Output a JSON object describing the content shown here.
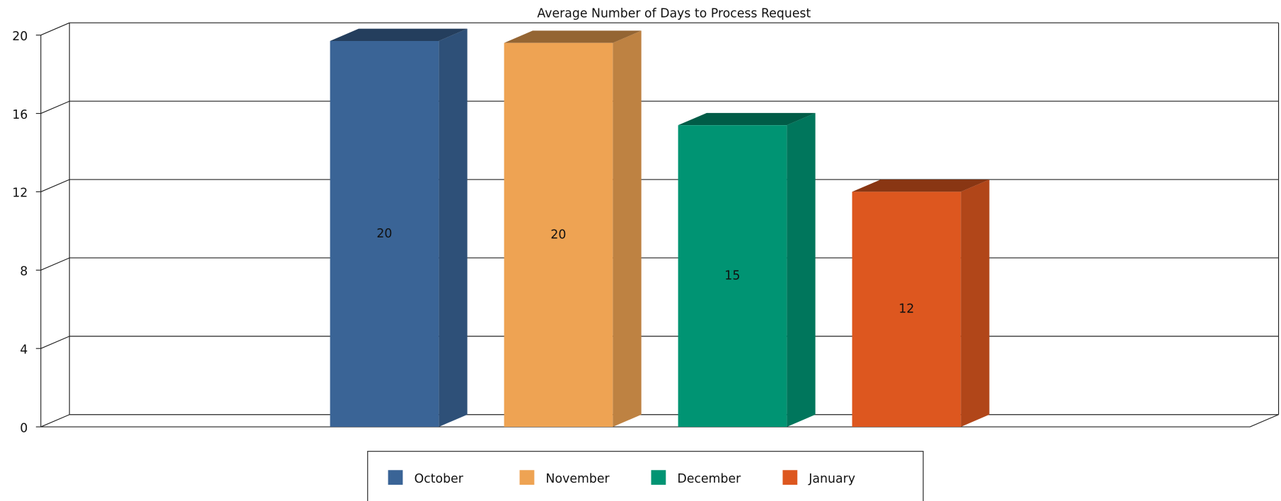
{
  "chart_data": {
    "type": "bar3d",
    "title": "Average Number of Days to Process Request",
    "series": [
      {
        "name": "October",
        "color": "#3a6496",
        "values": [
          19.7
        ],
        "value_labels": [
          "20"
        ]
      },
      {
        "name": "November",
        "color": "#eea353",
        "values": [
          19.6
        ],
        "value_labels": [
          "20"
        ]
      },
      {
        "name": "December",
        "color": "#009473",
        "values": [
          15.4
        ],
        "value_labels": [
          "15"
        ]
      },
      {
        "name": "January",
        "color": "#dd571f",
        "values": [
          12.0
        ],
        "value_labels": [
          "12"
        ]
      }
    ],
    "ylim": [
      0,
      20
    ],
    "yticks": [
      0,
      4,
      8,
      12,
      16,
      20
    ],
    "grid": true,
    "legend": "bottom"
  }
}
